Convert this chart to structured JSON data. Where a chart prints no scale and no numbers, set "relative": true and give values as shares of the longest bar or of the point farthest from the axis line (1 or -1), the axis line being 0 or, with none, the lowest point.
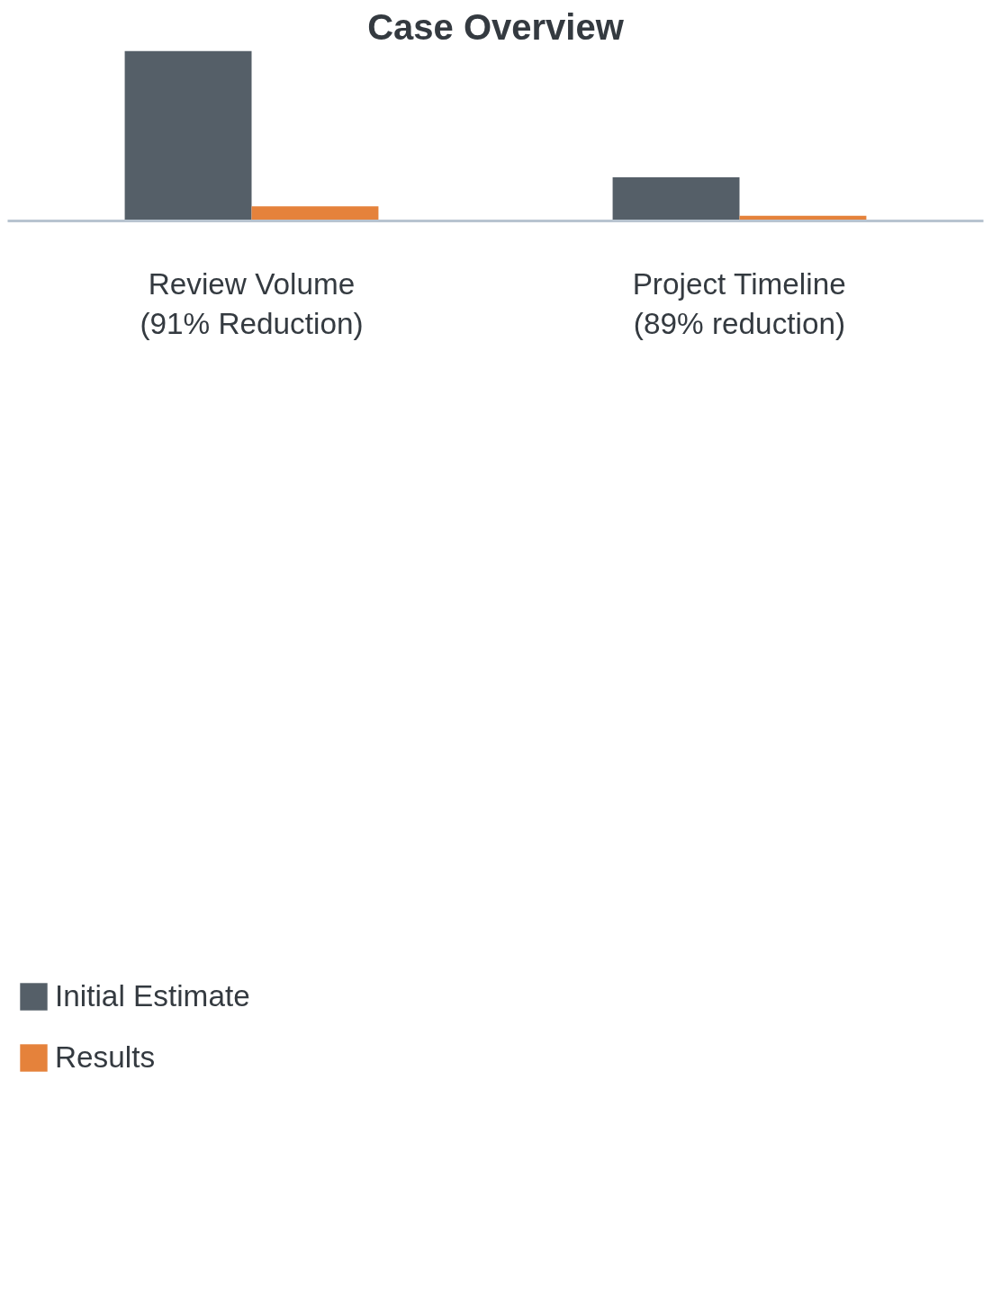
{
  "chart_data": {
    "type": "bar",
    "title": "Case Overview",
    "relative": true,
    "categories": [
      "Review Volume\n(91% Reduction)",
      "Project Timeline\n(89% reduction)"
    ],
    "series": [
      {
        "name": "Initial Estimate",
        "color": "#555f68",
        "values": [
          1,
          0.257
        ]
      },
      {
        "name": "Results",
        "color": "#e5823b",
        "values": [
          0.086,
          0.031
        ]
      }
    ],
    "grid": false,
    "legend": "bottom left"
  }
}
